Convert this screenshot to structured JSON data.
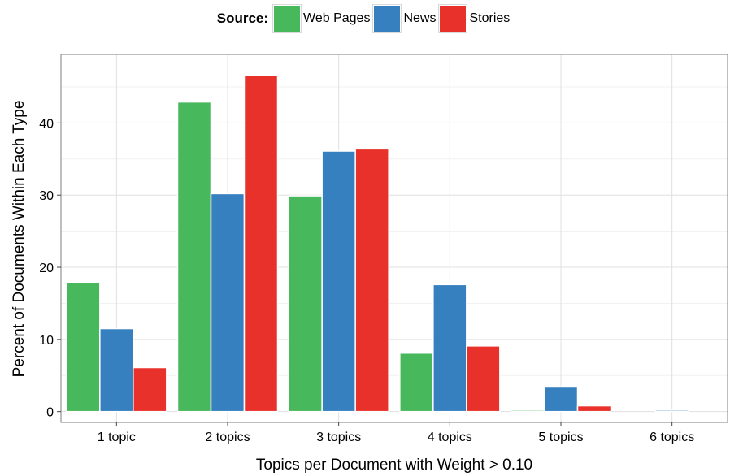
{
  "chart_data": {
    "type": "bar",
    "title": "",
    "xlabel": "Topics per Document with Weight > 0.10",
    "ylabel": "Percent of Documents Within Each Type",
    "categories": [
      "1 topic",
      "2 topics",
      "3 topics",
      "4 topics",
      "5 topics",
      "6 topics"
    ],
    "series": [
      {
        "name": "Web Pages",
        "color": "#47b85b",
        "values": [
          17.9,
          42.9,
          29.9,
          8.1,
          0.2,
          0.0
        ]
      },
      {
        "name": "News",
        "color": "#3680bf",
        "values": [
          11.5,
          30.2,
          36.1,
          17.6,
          3.4,
          0.2
        ]
      },
      {
        "name": "Stories",
        "color": "#e8312a",
        "values": [
          6.1,
          46.6,
          36.4,
          9.1,
          0.8,
          0.0
        ]
      }
    ],
    "ylim": [
      -1.5,
      49.5
    ],
    "yticks": [
      0,
      10,
      20,
      30,
      40
    ],
    "grid": true,
    "legend_position": "top"
  },
  "legend": {
    "title": "Source:"
  }
}
